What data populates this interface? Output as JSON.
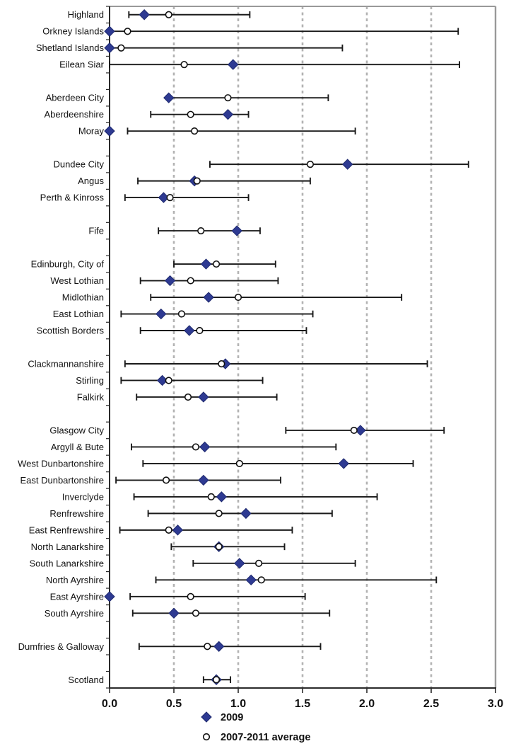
{
  "chart_data": {
    "type": "scatter",
    "title": "",
    "xlabel": "",
    "ylabel": "",
    "xlim": [
      0.0,
      3.0
    ],
    "xticks": [
      "0.0",
      "0.5",
      "1.0",
      "1.5",
      "2.0",
      "2.5",
      "3.0"
    ],
    "grid_values": [
      0.5,
      1.0,
      1.5,
      2.0,
      2.5
    ],
    "grid_style": "dashed-gray",
    "legend_position": "bottom",
    "legend": [
      {
        "label": "2009",
        "marker": "diamond",
        "color": "#2e3a92"
      },
      {
        "label": "2007-2011 average",
        "marker": "open-circle",
        "color": "#ffffff"
      }
    ],
    "series_note": "Each row shows a filled diamond (2009 value), an open circle (2007-2011 average) and a horizontal confidence-interval bar (ci_low to ci_high).",
    "rows": [
      {
        "area": "Highland",
        "y2009": 0.27,
        "avg": 0.46,
        "ci_low": 0.15,
        "ci_high": 1.09,
        "gap_after": false
      },
      {
        "area": "Orkney Islands",
        "y2009": 0.0,
        "avg": 0.14,
        "ci_low": 0.0,
        "ci_high": 2.71,
        "gap_after": false
      },
      {
        "area": "Shetland Islands",
        "y2009": 0.0,
        "avg": 0.09,
        "ci_low": 0.0,
        "ci_high": 1.81,
        "gap_after": false
      },
      {
        "area": "Eilean Siar",
        "y2009": 0.96,
        "avg": 0.58,
        "ci_low": 0.0,
        "ci_high": 2.72,
        "gap_after": true
      },
      {
        "area": "Aberdeen City",
        "y2009": 0.46,
        "avg": 0.92,
        "ci_low": 0.45,
        "ci_high": 1.7,
        "gap_after": false
      },
      {
        "area": "Aberdeenshire",
        "y2009": 0.92,
        "avg": 0.63,
        "ci_low": 0.32,
        "ci_high": 1.08,
        "gap_after": false
      },
      {
        "area": "Moray",
        "y2009": 0.0,
        "avg": 0.66,
        "ci_low": 0.14,
        "ci_high": 1.91,
        "gap_after": true
      },
      {
        "area": "Dundee City",
        "y2009": 1.85,
        "avg": 1.56,
        "ci_low": 0.78,
        "ci_high": 2.79,
        "gap_after": false
      },
      {
        "area": "Angus",
        "y2009": 0.66,
        "avg": 0.68,
        "ci_low": 0.22,
        "ci_high": 1.56,
        "gap_after": false
      },
      {
        "area": "Perth & Kinross",
        "y2009": 0.42,
        "avg": 0.47,
        "ci_low": 0.12,
        "ci_high": 1.08,
        "gap_after": true
      },
      {
        "area": "Fife",
        "y2009": 0.99,
        "avg": 0.71,
        "ci_low": 0.38,
        "ci_high": 1.17,
        "gap_after": true
      },
      {
        "area": "Edinburgh, City of",
        "y2009": 0.75,
        "avg": 0.83,
        "ci_low": 0.5,
        "ci_high": 1.29,
        "gap_after": false
      },
      {
        "area": "West Lothian",
        "y2009": 0.47,
        "avg": 0.63,
        "ci_low": 0.24,
        "ci_high": 1.31,
        "gap_after": false
      },
      {
        "area": "Midlothian",
        "y2009": 0.77,
        "avg": 1.0,
        "ci_low": 0.32,
        "ci_high": 2.27,
        "gap_after": false
      },
      {
        "area": "East Lothian",
        "y2009": 0.4,
        "avg": 0.56,
        "ci_low": 0.09,
        "ci_high": 1.58,
        "gap_after": false
      },
      {
        "area": "Scottish Borders",
        "y2009": 0.62,
        "avg": 0.7,
        "ci_low": 0.24,
        "ci_high": 1.53,
        "gap_after": true
      },
      {
        "area": "Clackmannanshire",
        "y2009": 0.9,
        "avg": 0.87,
        "ci_low": 0.12,
        "ci_high": 2.47,
        "gap_after": false
      },
      {
        "area": "Stirling",
        "y2009": 0.41,
        "avg": 0.46,
        "ci_low": 0.09,
        "ci_high": 1.19,
        "gap_after": false
      },
      {
        "area": "Falkirk",
        "y2009": 0.73,
        "avg": 0.61,
        "ci_low": 0.21,
        "ci_high": 1.3,
        "gap_after": true
      },
      {
        "area": "Glasgow City",
        "y2009": 1.95,
        "avg": 1.9,
        "ci_low": 1.37,
        "ci_high": 2.6,
        "gap_after": false
      },
      {
        "area": "Argyll & Bute",
        "y2009": 0.74,
        "avg": 0.67,
        "ci_low": 0.17,
        "ci_high": 1.76,
        "gap_after": false
      },
      {
        "area": "West Dunbartonshire",
        "y2009": 1.82,
        "avg": 1.01,
        "ci_low": 0.26,
        "ci_high": 2.36,
        "gap_after": false
      },
      {
        "area": "East Dunbartonshire",
        "y2009": 0.73,
        "avg": 0.44,
        "ci_low": 0.05,
        "ci_high": 1.33,
        "gap_after": false
      },
      {
        "area": "Inverclyde",
        "y2009": 0.87,
        "avg": 0.79,
        "ci_low": 0.19,
        "ci_high": 2.08,
        "gap_after": false
      },
      {
        "area": "Renfrewshire",
        "y2009": 1.06,
        "avg": 0.85,
        "ci_low": 0.3,
        "ci_high": 1.73,
        "gap_after": false
      },
      {
        "area": "East Renfrewshire",
        "y2009": 0.53,
        "avg": 0.46,
        "ci_low": 0.08,
        "ci_high": 1.42,
        "gap_after": false
      },
      {
        "area": "North Lanarkshire",
        "y2009": 0.85,
        "avg": 0.85,
        "ci_low": 0.48,
        "ci_high": 1.36,
        "gap_after": false
      },
      {
        "area": "South Lanarkshire",
        "y2009": 1.01,
        "avg": 1.16,
        "ci_low": 0.65,
        "ci_high": 1.91,
        "gap_after": false
      },
      {
        "area": "North Ayrshire",
        "y2009": 1.1,
        "avg": 1.18,
        "ci_low": 0.36,
        "ci_high": 2.54,
        "gap_after": false
      },
      {
        "area": "East Ayrshire",
        "y2009": 0.0,
        "avg": 0.63,
        "ci_low": 0.16,
        "ci_high": 1.52,
        "gap_after": false
      },
      {
        "area": "South Ayrshire",
        "y2009": 0.5,
        "avg": 0.67,
        "ci_low": 0.18,
        "ci_high": 1.71,
        "gap_after": true
      },
      {
        "area": "Dumfries & Galloway",
        "y2009": 0.85,
        "avg": 0.76,
        "ci_low": 0.23,
        "ci_high": 1.64,
        "gap_after": true
      },
      {
        "area": "Scotland",
        "y2009": 0.83,
        "avg": 0.83,
        "ci_low": 0.73,
        "ci_high": 0.94,
        "gap_after": false
      }
    ]
  },
  "colors": {
    "diamond_fill": "#2e3a92",
    "diamond_edge": "#1f2a6e",
    "circle_fill": "#ffffff",
    "circle_stroke": "#111111",
    "error_bar": "#1a1a1a",
    "gridline": "#b3b3b3",
    "axis": "#2b2b2b",
    "frame": "#999999",
    "text": "#111111"
  }
}
